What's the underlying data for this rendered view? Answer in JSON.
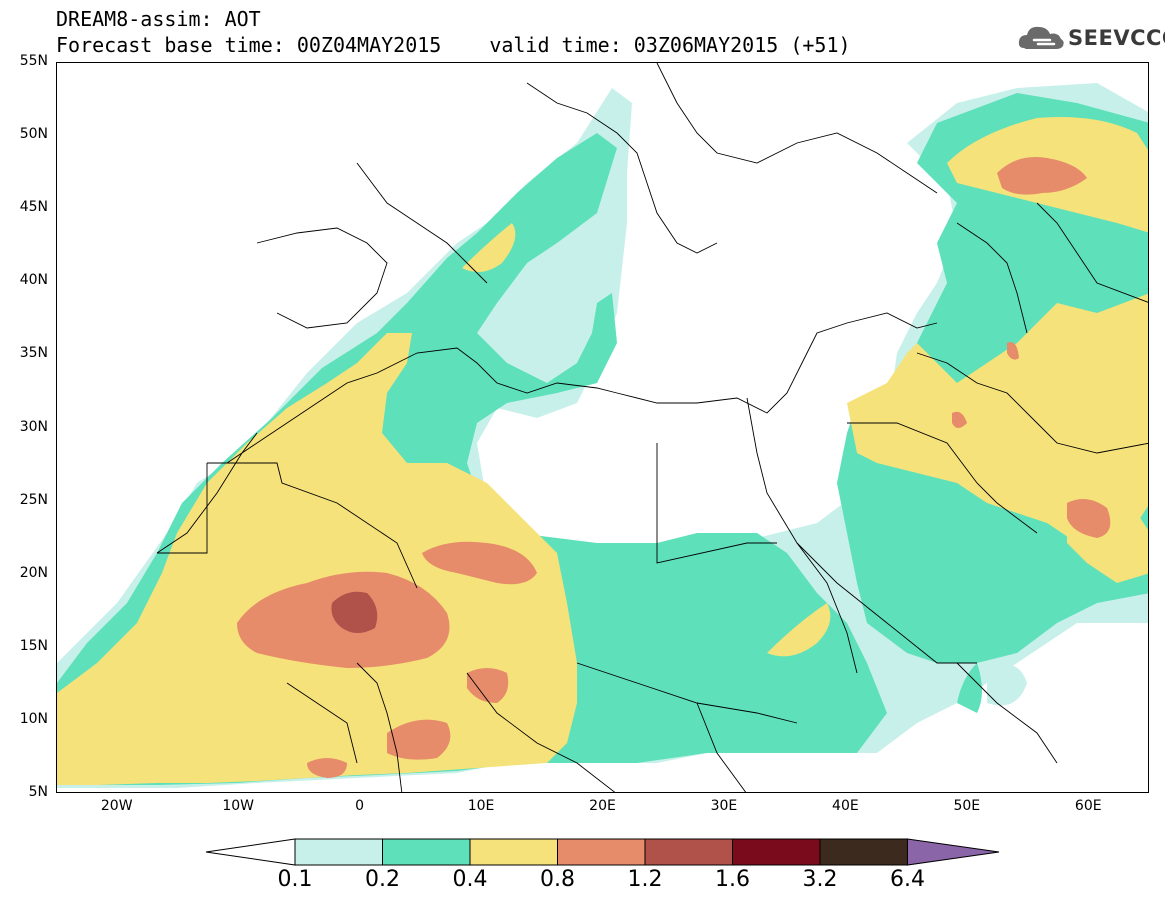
{
  "header": {
    "model": "DREAM8-assim: AOT",
    "base_time": "Forecast base time: 00Z04MAY2015",
    "valid_time": "valid time: 03Z06MAY2015 (+51)"
  },
  "logo": {
    "text": "SEEVCCC",
    "icon": "cloud-icon"
  },
  "map": {
    "lon_range": [
      -25,
      65
    ],
    "lat_range": [
      5,
      55
    ],
    "lat_ticks": [
      {
        "value": 55,
        "label": "55N"
      },
      {
        "value": 50,
        "label": "50N"
      },
      {
        "value": 45,
        "label": "45N"
      },
      {
        "value": 40,
        "label": "40N"
      },
      {
        "value": 35,
        "label": "35N"
      },
      {
        "value": 30,
        "label": "30N"
      },
      {
        "value": 25,
        "label": "25N"
      },
      {
        "value": 20,
        "label": "20N"
      },
      {
        "value": 15,
        "label": "15N"
      },
      {
        "value": 10,
        "label": "10N"
      },
      {
        "value": 5,
        "label": "5N"
      }
    ],
    "lon_ticks": [
      {
        "value": -20,
        "label": "20W"
      },
      {
        "value": -10,
        "label": "10W"
      },
      {
        "value": 0,
        "label": "0"
      },
      {
        "value": 10,
        "label": "10E"
      },
      {
        "value": 20,
        "label": "20E"
      },
      {
        "value": 30,
        "label": "30E"
      },
      {
        "value": 40,
        "label": "40E"
      },
      {
        "value": 50,
        "label": "50E"
      },
      {
        "value": 60,
        "label": "60E"
      }
    ]
  },
  "colorbar": {
    "levels": [
      "0.1",
      "0.2",
      "0.4",
      "0.8",
      "1.2",
      "1.6",
      "3.2",
      "6.4"
    ],
    "colors": [
      "#ffffff",
      "#c8f0ea",
      "#5ee0bb",
      "#f6e27a",
      "#e68c6a",
      "#b0514a",
      "#7a0b1d",
      "#3d2a1e",
      "#8a65a8"
    ]
  }
}
